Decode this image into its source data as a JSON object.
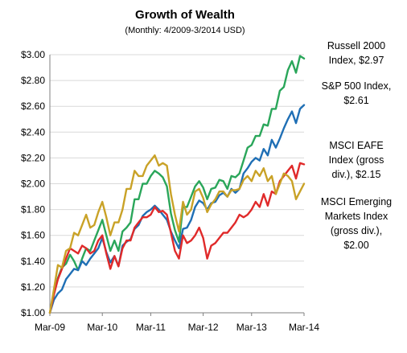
{
  "chart_data": {
    "type": "line",
    "title": "Growth of Wealth",
    "subtitle": "(Monthly: 4/2009-3/2014 USD)",
    "xlabel": "",
    "ylabel": "",
    "x_ticks": [
      "Mar-09",
      "Mar-10",
      "Mar-11",
      "Mar-12",
      "Mar-13",
      "Mar-14"
    ],
    "y_ticks": [
      "$1.00",
      "$1.20",
      "$1.40",
      "$1.60",
      "$1.80",
      "$2.00",
      "$2.20",
      "$2.40",
      "$2.60",
      "$2.80",
      "$3.00"
    ],
    "ylim": [
      1.0,
      3.0
    ],
    "grid": true,
    "legend_placement": "right",
    "series": [
      {
        "name": "Russell 2000",
        "label_lines": [
          "Russell 2000",
          "Index, $2.97"
        ],
        "color": "#2aa65a",
        "values": [
          1.0,
          1.15,
          1.27,
          1.35,
          1.38,
          1.45,
          1.4,
          1.33,
          1.42,
          1.5,
          1.48,
          1.56,
          1.64,
          1.72,
          1.6,
          1.48,
          1.56,
          1.48,
          1.63,
          1.66,
          1.7,
          1.88,
          1.88,
          2.0,
          2.0,
          2.06,
          2.1,
          2.08,
          2.05,
          1.98,
          1.77,
          1.64,
          1.55,
          1.82,
          1.82,
          1.9,
          1.98,
          2.02,
          1.97,
          1.88,
          1.96,
          1.97,
          2.03,
          2.02,
          1.96,
          2.06,
          2.05,
          2.08,
          2.18,
          2.28,
          2.3,
          2.37,
          2.37,
          2.46,
          2.45,
          2.58,
          2.58,
          2.72,
          2.75,
          2.88,
          2.95,
          2.86,
          2.99,
          2.97
        ]
      },
      {
        "name": "S&P 500 Index",
        "label_lines": [
          "S&P 500 Index,",
          "$2.61"
        ],
        "color": "#1f6fb5",
        "values": [
          1.0,
          1.1,
          1.15,
          1.18,
          1.26,
          1.3,
          1.34,
          1.33,
          1.4,
          1.37,
          1.42,
          1.46,
          1.5,
          1.58,
          1.47,
          1.39,
          1.44,
          1.36,
          1.52,
          1.55,
          1.57,
          1.65,
          1.68,
          1.75,
          1.78,
          1.8,
          1.83,
          1.8,
          1.76,
          1.72,
          1.63,
          1.56,
          1.5,
          1.65,
          1.66,
          1.72,
          1.82,
          1.87,
          1.85,
          1.8,
          1.85,
          1.86,
          1.91,
          1.93,
          1.9,
          1.96,
          1.93,
          1.96,
          2.08,
          2.12,
          2.17,
          2.2,
          2.18,
          2.27,
          2.22,
          2.34,
          2.28,
          2.35,
          2.43,
          2.5,
          2.56,
          2.47,
          2.58,
          2.61
        ]
      },
      {
        "name": "MSCI EAFE Index (gross div.)",
        "label_lines": [
          "MSCI EAFE",
          "Index (gross",
          "div.), $2.15"
        ],
        "color": "#e02a2a",
        "values": [
          1.0,
          1.14,
          1.26,
          1.34,
          1.42,
          1.5,
          1.48,
          1.46,
          1.52,
          1.5,
          1.46,
          1.48,
          1.56,
          1.6,
          1.46,
          1.34,
          1.44,
          1.36,
          1.5,
          1.56,
          1.56,
          1.66,
          1.7,
          1.74,
          1.74,
          1.76,
          1.82,
          1.78,
          1.79,
          1.76,
          1.62,
          1.48,
          1.42,
          1.6,
          1.54,
          1.56,
          1.6,
          1.66,
          1.58,
          1.42,
          1.52,
          1.54,
          1.58,
          1.62,
          1.62,
          1.66,
          1.7,
          1.76,
          1.74,
          1.76,
          1.8,
          1.86,
          1.82,
          1.92,
          1.83,
          1.94,
          1.92,
          2.02,
          2.06,
          2.1,
          2.14,
          2.04,
          2.16,
          2.15
        ]
      },
      {
        "name": "MSCI Emerging Markets Index (gross div.)",
        "label_lines": [
          "MSCI Emerging",
          "Markets Index",
          "(gross div.),",
          "$2.00"
        ],
        "color": "#c9a227",
        "values": [
          1.0,
          1.18,
          1.37,
          1.35,
          1.48,
          1.5,
          1.62,
          1.6,
          1.68,
          1.76,
          1.66,
          1.68,
          1.78,
          1.86,
          1.74,
          1.6,
          1.7,
          1.7,
          1.8,
          1.96,
          1.96,
          2.1,
          2.06,
          2.06,
          2.14,
          2.18,
          2.22,
          2.14,
          2.16,
          2.14,
          1.92,
          1.76,
          1.63,
          1.86,
          1.76,
          1.8,
          1.94,
          1.96,
          1.89,
          1.78,
          1.84,
          1.88,
          1.94,
          1.94,
          1.9,
          1.95,
          1.95,
          1.96,
          2.03,
          2.06,
          2.02,
          2.1,
          2.06,
          2.12,
          2.02,
          2.06,
          1.92,
          2.0,
          2.08,
          2.06,
          2.02,
          1.88,
          1.94,
          2.0
        ]
      }
    ]
  }
}
